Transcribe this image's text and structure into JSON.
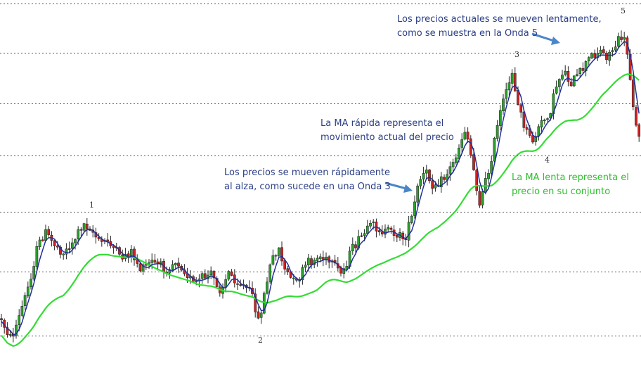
{
  "chart_data": {
    "type": "candlestick",
    "colors": {
      "up": "#2ca02c",
      "down": "#cc2222",
      "fast_ma": "#1f2f9a",
      "slow_ma": "#33dd33",
      "grid": "#555555",
      "arrow": "#4a86c8",
      "annotation_blue": "#2b3f86",
      "annotation_green": "#2fbf2f"
    },
    "grid": "horizontal-dashed",
    "annotations": {
      "fast_ma": [
        "La MA rápida representa el",
        "movimiento actual del precio"
      ],
      "slow_ma": [
        "La MA lenta representa el",
        "precio en su conjunto"
      ],
      "wave3": [
        "Los precios se mueven rápidamente",
        "al alza, como sucede en una Onda 3"
      ],
      "wave5": [
        "Los precios actuales se mueven lentamente,",
        "como se muestra en la Onda 5"
      ]
    },
    "wave_labels": [
      "1",
      "2",
      "3",
      "4",
      "5"
    ],
    "series": [
      {
        "kind": "price"
      },
      {
        "kind": "fast_ma"
      },
      {
        "kind": "slow_ma"
      }
    ]
  }
}
